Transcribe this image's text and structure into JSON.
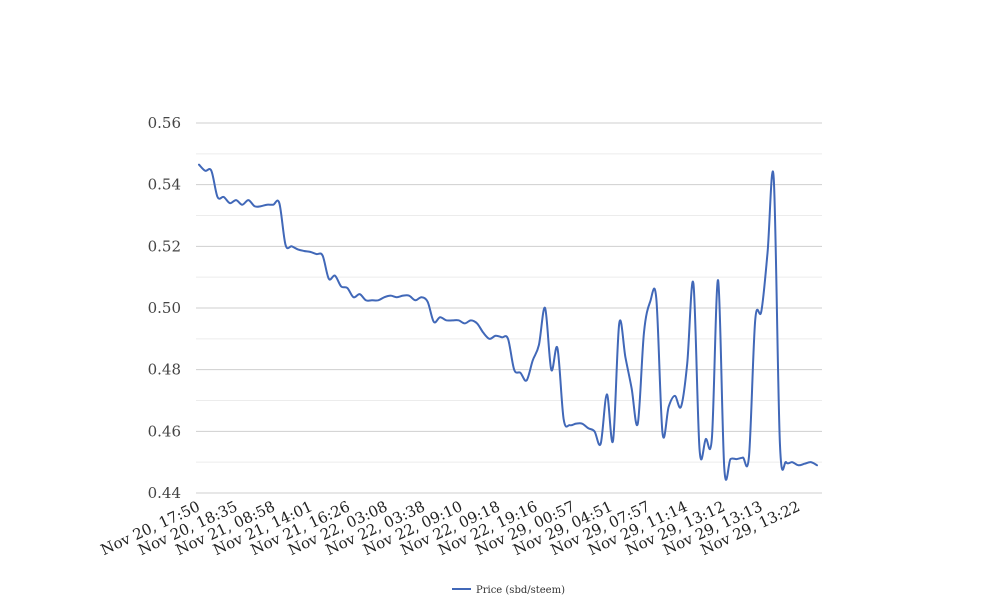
{
  "chart_data": {
    "type": "line",
    "title": "",
    "xlabel": "",
    "ylabel": "",
    "ylim": [
      0.44,
      0.56
    ],
    "y_ticks": [
      "0.44",
      "0.46",
      "0.48",
      "0.50",
      "0.52",
      "0.54",
      "0.56"
    ],
    "x_tick_labels": [
      "Nov 20, 17:50",
      "Nov 20, 18:35",
      "Nov 21, 08:58",
      "Nov 21, 14:01",
      "Nov 21, 16:26",
      "Nov 22, 03:08",
      "Nov 22, 03:38",
      "Nov 22, 09:10",
      "Nov 22, 09:18",
      "Nov 22, 19:16",
      "Nov 29, 00:57",
      "Nov 29, 04:51",
      "Nov 29, 07:57",
      "Nov 29, 11:14",
      "Nov 29, 13:12",
      "Nov 29, 13:13",
      "Nov 29, 13:22"
    ],
    "grid": true,
    "legend_position": "bottom",
    "colors": {
      "series": "#4168b8",
      "grid_major": "#cfcfcf",
      "grid_minor": "#ececec"
    },
    "series": [
      {
        "name": "Price (sbd/steem)",
        "values": [
          0.5465,
          0.5445,
          0.5445,
          0.536,
          0.536,
          0.534,
          0.535,
          0.5335,
          0.535,
          0.533,
          0.533,
          0.5335,
          0.5335,
          0.534,
          0.5205,
          0.52,
          0.519,
          0.5185,
          0.5182,
          0.5175,
          0.517,
          0.5095,
          0.5105,
          0.507,
          0.5065,
          0.5035,
          0.5045,
          0.5025,
          0.5025,
          0.5025,
          0.5035,
          0.504,
          0.5035,
          0.504,
          0.504,
          0.5025,
          0.5035,
          0.502,
          0.4955,
          0.497,
          0.496,
          0.496,
          0.496,
          0.495,
          0.496,
          0.495,
          0.492,
          0.49,
          0.491,
          0.4905,
          0.49,
          0.48,
          0.479,
          0.4765,
          0.483,
          0.488,
          0.5,
          0.48,
          0.487,
          0.464,
          0.462,
          0.4625,
          0.4625,
          0.461,
          0.46,
          0.456,
          0.472,
          0.457,
          0.495,
          0.484,
          0.474,
          0.4625,
          0.492,
          0.502,
          0.503,
          0.4595,
          0.468,
          0.4715,
          0.468,
          0.482,
          0.508,
          0.454,
          0.4575,
          0.458,
          0.509,
          0.448,
          0.451,
          0.451,
          0.4515,
          0.452,
          0.496,
          0.499,
          0.518,
          0.542,
          0.456,
          0.45,
          0.45,
          0.449,
          0.4495,
          0.45,
          0.449
        ]
      }
    ]
  }
}
